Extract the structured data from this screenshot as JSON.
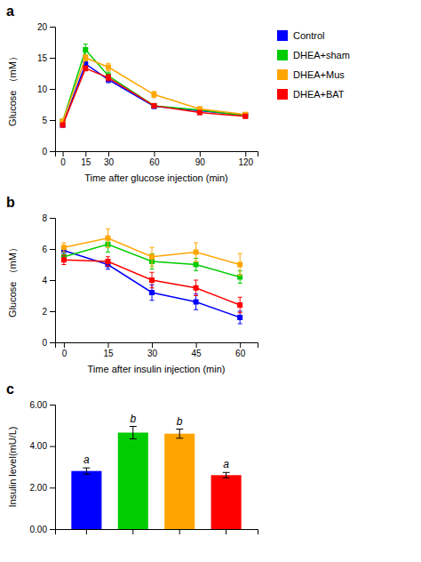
{
  "chart_data": [
    {
      "type": "line",
      "title": "a",
      "x_label": "Time after glucose injection (min)",
      "y_label": "Glucose （mM）",
      "x": [
        0,
        15,
        30,
        60,
        90,
        120
      ],
      "xlim": [
        -5,
        128
      ],
      "xticks": [
        0,
        15,
        30,
        60,
        90,
        120
      ],
      "ylim": [
        0,
        20
      ],
      "yticks": [
        0,
        5,
        10,
        15,
        20
      ],
      "marker": "square",
      "legend": "right",
      "series": [
        {
          "name": "Control",
          "color": "#0000FF",
          "values": [
            4.2,
            14.0,
            11.5,
            7.2,
            6.5,
            5.8
          ],
          "errors": [
            0.2,
            0.6,
            0.5,
            0.3,
            0.3,
            0.2
          ]
        },
        {
          "name": "DHEA+sham",
          "color": "#00CC00",
          "values": [
            4.8,
            16.3,
            12.1,
            7.3,
            6.6,
            5.7
          ],
          "errors": [
            0.2,
            0.9,
            0.6,
            0.3,
            0.3,
            0.2
          ]
        },
        {
          "name": "DHEA+Mus",
          "color": "#FFA500",
          "values": [
            4.8,
            15.0,
            13.5,
            9.1,
            6.8,
            5.9
          ],
          "errors": [
            0.2,
            0.5,
            0.6,
            0.5,
            0.3,
            0.2
          ]
        },
        {
          "name": "DHEA+BAT",
          "color": "#FF0000",
          "values": [
            4.2,
            13.3,
            11.8,
            7.3,
            6.2,
            5.6
          ],
          "errors": [
            0.2,
            0.4,
            0.5,
            0.3,
            0.3,
            0.2
          ]
        }
      ]
    },
    {
      "type": "line",
      "title": "b",
      "x_label": "Time after insulin injection (min)",
      "y_label": "Glucose （mM）",
      "x": [
        0,
        15,
        30,
        45,
        60
      ],
      "xlim": [
        -3,
        66
      ],
      "xticks": [
        0,
        15,
        30,
        45,
        60
      ],
      "ylim": [
        0,
        8
      ],
      "yticks": [
        0,
        2,
        4,
        6,
        8
      ],
      "marker": "square",
      "series": [
        {
          "color": "#0000FF",
          "values": [
            5.9,
            5.0,
            3.2,
            2.6,
            1.6
          ],
          "errors": [
            0.3,
            0.3,
            0.5,
            0.5,
            0.4
          ]
        },
        {
          "color": "#00CC00",
          "values": [
            5.5,
            6.3,
            5.2,
            5.0,
            4.2
          ],
          "errors": [
            0.3,
            0.5,
            0.5,
            0.4,
            0.4
          ]
        },
        {
          "color": "#FFA500",
          "values": [
            6.1,
            6.7,
            5.5,
            5.8,
            5.0
          ],
          "errors": [
            0.3,
            0.6,
            0.6,
            0.6,
            0.7
          ]
        },
        {
          "color": "#FF0000",
          "values": [
            5.3,
            5.2,
            4.0,
            3.5,
            2.4
          ],
          "errors": [
            0.3,
            0.3,
            0.5,
            0.5,
            0.5
          ]
        }
      ]
    },
    {
      "type": "bar",
      "title": "c",
      "y_label": "Insulin level(mU/L)",
      "categories": [
        null,
        null,
        null,
        null
      ],
      "values": [
        2.8,
        4.65,
        4.6,
        2.6
      ],
      "errors": [
        0.15,
        0.3,
        0.22,
        0.13
      ],
      "colors": [
        "#0000FF",
        "#00CC00",
        "#FFA500",
        "#FF0000"
      ],
      "annotations": [
        "a",
        "b",
        "b",
        "a"
      ],
      "ylim": [
        0,
        6.0
      ],
      "yticks": [
        {
          "value": 0.0,
          "label": "0.00"
        },
        {
          "value": 2.0,
          "label": "2.00"
        },
        {
          "value": 4.0,
          "label": "4.00"
        },
        {
          "value": 6.0,
          "label": "6.00"
        }
      ]
    }
  ]
}
